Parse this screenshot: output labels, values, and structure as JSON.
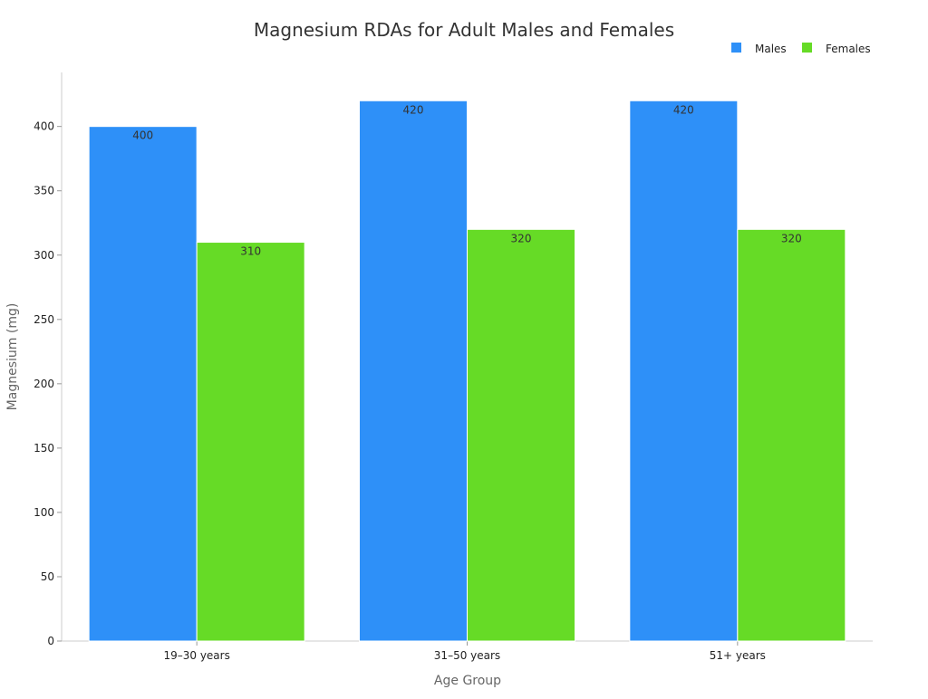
{
  "chart_data": {
    "type": "bar",
    "title": "Magnesium RDAs for Adult Males and Females",
    "xlabel": "Age Group",
    "ylabel": "Magnesium (mg)",
    "categories": [
      "19–30 years",
      "31–50 years",
      "51+ years"
    ],
    "series": [
      {
        "name": "Males",
        "values": [
          400,
          420,
          420
        ],
        "color": "#2e90f8"
      },
      {
        "name": "Females",
        "values": [
          310,
          320,
          320
        ],
        "color": "#66db26"
      }
    ],
    "yticks": [
      0,
      50,
      100,
      150,
      200,
      250,
      300,
      350,
      400
    ],
    "ylim": [
      0,
      442
    ],
    "grid": false,
    "legend_position": "top-right",
    "data_labels": true
  }
}
